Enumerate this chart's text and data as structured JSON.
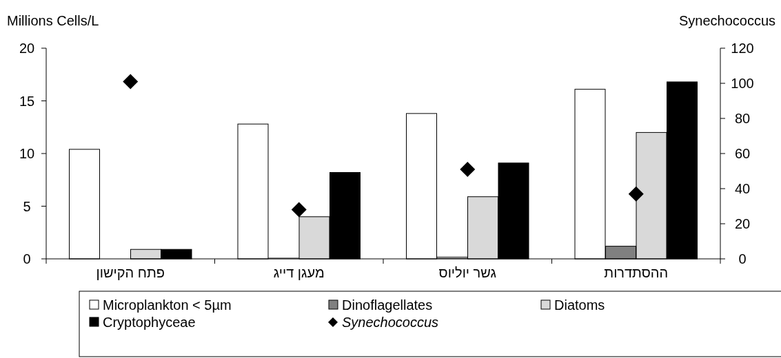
{
  "chart_data": {
    "type": "bar",
    "ylabel": "Millions Cells/L",
    "y2label": "Synechococcus",
    "categories": [
      "פתח הקישון",
      "מעגן דייג",
      "גשר יוליוס",
      "ההסתדרות"
    ],
    "series": [
      {
        "name": "Microplankton < 5µm",
        "color": "#ffffff",
        "values": [
          10.4,
          12.8,
          13.8,
          16.1
        ]
      },
      {
        "name": "Dinoflagellates",
        "color": "#808080",
        "values": [
          null,
          0.1,
          0.2,
          1.2
        ]
      },
      {
        "name": "Diatoms",
        "color": "#d9d9d9",
        "values": [
          0.9,
          4.0,
          5.9,
          12.0
        ]
      },
      {
        "name": "Cryptophyceae",
        "color": "#000000",
        "values": [
          0.9,
          8.2,
          9.1,
          16.8
        ]
      },
      {
        "name": "Synechococcus",
        "type": "scatter",
        "axis": "y2",
        "marker": "diamond",
        "color": "#000000",
        "values": [
          101,
          28,
          51,
          37
        ]
      }
    ],
    "ylim": [
      0,
      20
    ],
    "yticks": [
      0,
      5,
      10,
      15,
      20
    ],
    "y2lim": [
      0,
      120
    ],
    "y2ticks": [
      0,
      20,
      40,
      60,
      80,
      100,
      120
    ],
    "legend": "bottom",
    "grid": false
  }
}
